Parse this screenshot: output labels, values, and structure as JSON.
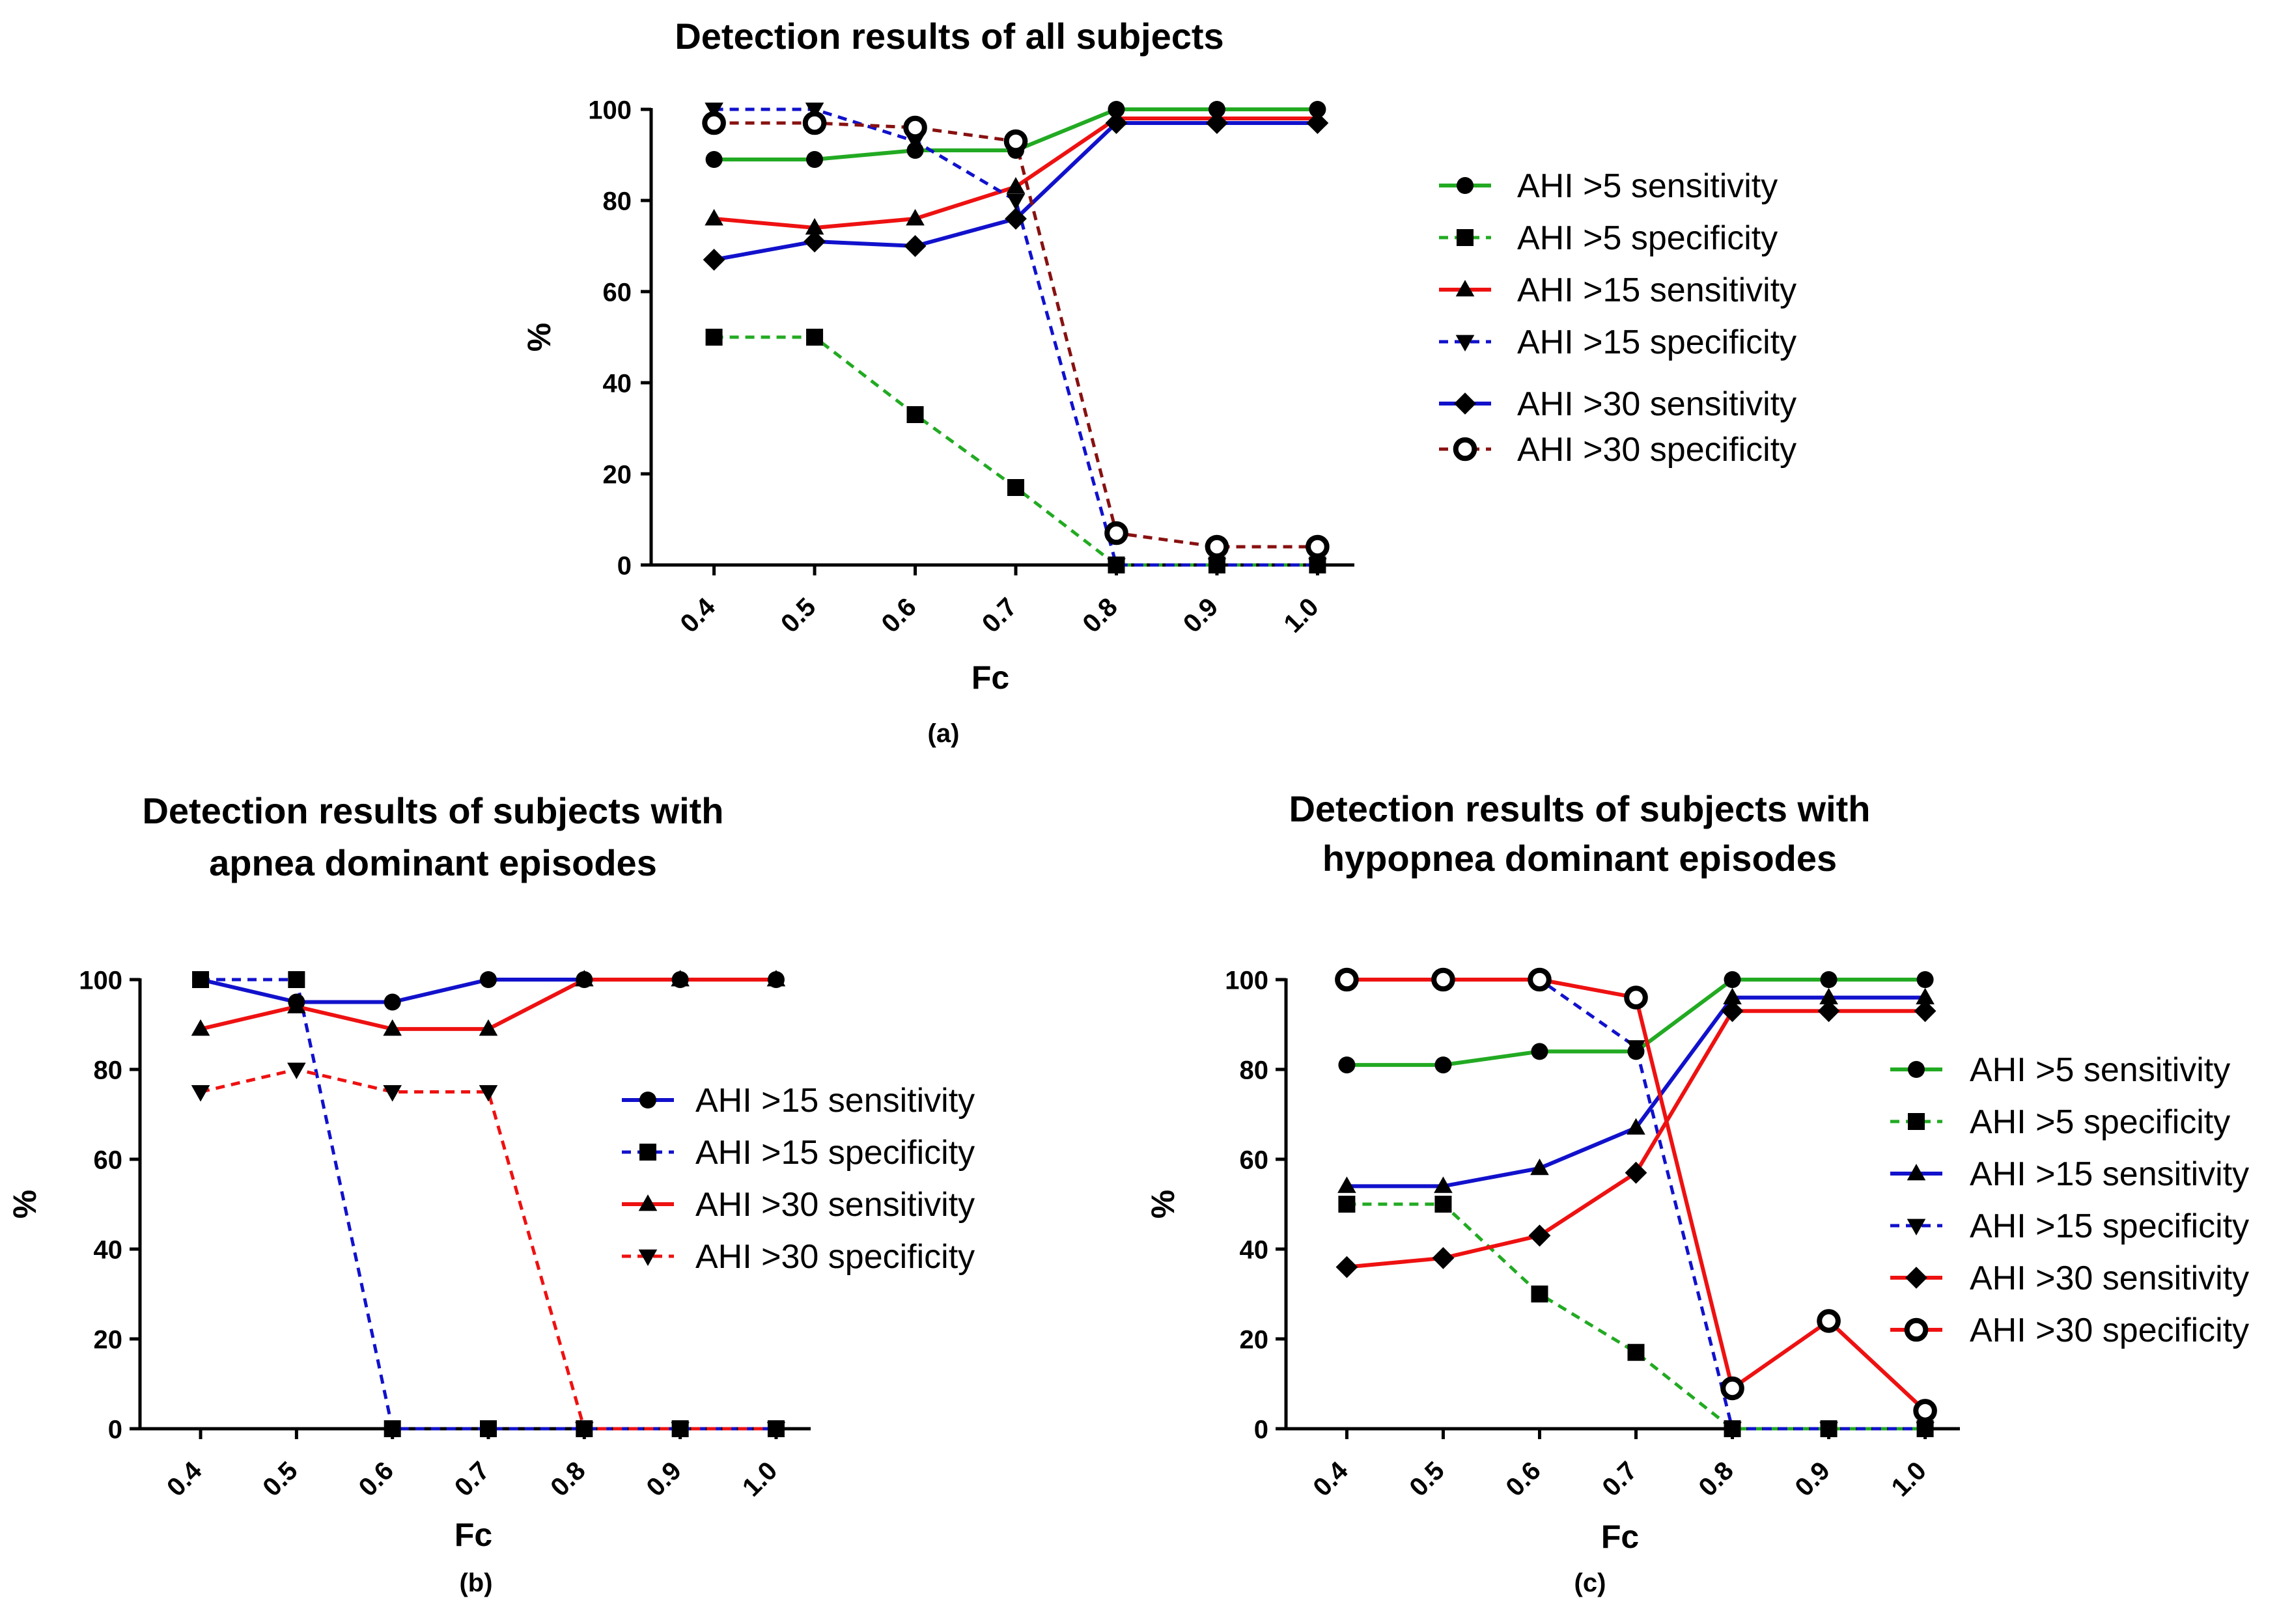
{
  "colors": {
    "green": "#22aa22",
    "blue": "#1111cc",
    "red": "#ee1111",
    "darkred": "#881111",
    "black": "#000000"
  },
  "chart_data": [
    {
      "id": "a",
      "type": "line",
      "title": [
        "Detection results of all subjects"
      ],
      "panel_label": "(a)",
      "xlabel": "Fc",
      "ylabel": "%",
      "x": [
        0.4,
        0.5,
        0.6,
        0.7,
        0.8,
        0.9,
        1.0
      ],
      "x_tick_labels": [
        "0.4",
        "0.5",
        "0.6",
        "0.7",
        "0.8",
        "0.9",
        "1.0"
      ],
      "ylim": [
        0,
        100
      ],
      "yticks": [
        0,
        20,
        40,
        60,
        80,
        100
      ],
      "legend_position": "right",
      "series": [
        {
          "name": "AHI >5 sensitivity",
          "values": [
            89,
            89,
            91,
            91,
            100,
            100,
            100
          ],
          "color": "green",
          "dash": "solid",
          "marker": "circle"
        },
        {
          "name": "AHI >5 specificity",
          "values": [
            50,
            50,
            33,
            17,
            0,
            0,
            0
          ],
          "color": "green",
          "dash": "dashed",
          "marker": "square"
        },
        {
          "name": "AHI >15 sensitivity",
          "values": [
            76,
            74,
            76,
            83,
            98,
            98,
            98
          ],
          "color": "red",
          "dash": "solid",
          "marker": "triangle"
        },
        {
          "name": "AHI >15 specificity",
          "values": [
            100,
            100,
            93,
            80,
            0,
            0,
            0
          ],
          "color": "blue",
          "dash": "dashed",
          "marker": "triangle-down"
        },
        {
          "name": "AHI >30 sensitivity",
          "values": [
            67,
            71,
            70,
            76,
            97,
            97,
            97
          ],
          "color": "blue",
          "dash": "solid",
          "marker": "diamond"
        },
        {
          "name": "AHI >30 specificity",
          "values": [
            97,
            97,
            96,
            93,
            7,
            4,
            4
          ],
          "color": "darkred",
          "dash": "dashed",
          "marker": "open-circle"
        }
      ]
    },
    {
      "id": "b",
      "type": "line",
      "title": [
        "Detection results of subjects with",
        "apnea dominant episodes"
      ],
      "panel_label": "(b)",
      "xlabel": "Fc",
      "ylabel": "%",
      "x": [
        0.4,
        0.5,
        0.6,
        0.7,
        0.8,
        0.9,
        1.0
      ],
      "x_tick_labels": [
        "0.4",
        "0.5",
        "0.6",
        "0.7",
        "0.8",
        "0.9",
        "1.0"
      ],
      "ylim": [
        0,
        100
      ],
      "yticks": [
        0,
        20,
        40,
        60,
        80,
        100
      ],
      "legend_position": "right",
      "series": [
        {
          "name": "AHI >15 sensitivity",
          "values": [
            100,
            95,
            95,
            100,
            100,
            100,
            100
          ],
          "color": "blue",
          "dash": "solid",
          "marker": "circle"
        },
        {
          "name": "AHI >15 specificity",
          "values": [
            100,
            100,
            0,
            0,
            0,
            0,
            0
          ],
          "color": "blue",
          "dash": "dashed",
          "marker": "square"
        },
        {
          "name": "AHI >30 sensitivity",
          "values": [
            89,
            94,
            89,
            89,
            100,
            100,
            100
          ],
          "color": "red",
          "dash": "solid",
          "marker": "triangle"
        },
        {
          "name": "AHI >30 specificity",
          "values": [
            75,
            80,
            75,
            75,
            0,
            0,
            0
          ],
          "color": "red",
          "dash": "dashed",
          "marker": "triangle-down"
        }
      ]
    },
    {
      "id": "c",
      "type": "line",
      "title": [
        "Detection results of subjects with",
        "hypopnea dominant episodes"
      ],
      "panel_label": "(c)",
      "xlabel": "Fc",
      "ylabel": "%",
      "x": [
        0.4,
        0.5,
        0.6,
        0.7,
        0.8,
        0.9,
        1.0
      ],
      "x_tick_labels": [
        "0.4",
        "0.5",
        "0.6",
        "0.7",
        "0.8",
        "0.9",
        "1.0"
      ],
      "ylim": [
        0,
        100
      ],
      "yticks": [
        0,
        20,
        40,
        60,
        80,
        100
      ],
      "legend_position": "right",
      "series": [
        {
          "name": "AHI >5 sensitivity",
          "values": [
            81,
            81,
            84,
            84,
            100,
            100,
            100
          ],
          "color": "green",
          "dash": "solid",
          "marker": "circle"
        },
        {
          "name": "AHI >5 specificity",
          "values": [
            50,
            50,
            30,
            17,
            0,
            0,
            0
          ],
          "color": "green",
          "dash": "dashed",
          "marker": "square"
        },
        {
          "name": "AHI >15 sensitivity",
          "values": [
            54,
            54,
            58,
            67,
            96,
            96,
            96
          ],
          "color": "blue",
          "dash": "solid",
          "marker": "triangle"
        },
        {
          "name": "AHI >15 specificity",
          "values": [
            100,
            100,
            100,
            85,
            0,
            0,
            0
          ],
          "color": "blue",
          "dash": "dashed",
          "marker": "triangle-down"
        },
        {
          "name": "AHI >30 sensitivity",
          "values": [
            36,
            38,
            43,
            57,
            93,
            93,
            93
          ],
          "color": "red",
          "dash": "solid",
          "marker": "diamond"
        },
        {
          "name": "AHI >30 specificity",
          "values": [
            100,
            100,
            100,
            96,
            9,
            24,
            4
          ],
          "color": "red",
          "dash": "solid",
          "marker": "open-circle"
        }
      ]
    }
  ]
}
